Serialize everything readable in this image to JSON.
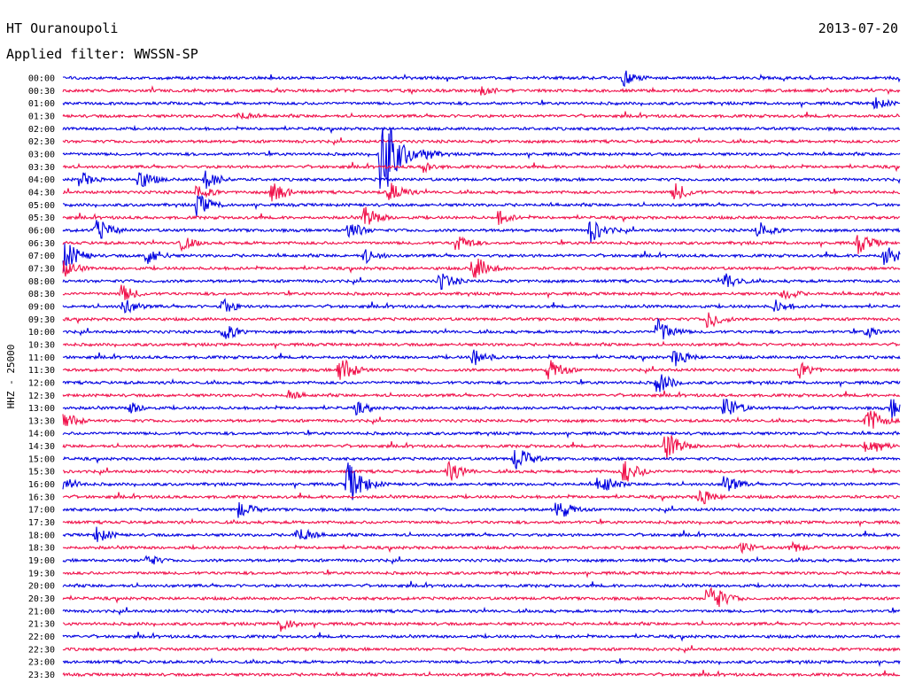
{
  "header": {
    "station": "HT Ouranoupoli",
    "date": "2013-07-20",
    "filter": "Applied filter: WWSSN-SP"
  },
  "chart_data": {
    "type": "line",
    "ylabel": "HHZ - 25000",
    "colors": [
      "#0000e0",
      "#f0104a"
    ],
    "row_labels": [
      "00:00",
      "00:30",
      "01:00",
      "01:30",
      "02:00",
      "02:30",
      "03:00",
      "03:30",
      "04:00",
      "04:30",
      "05:00",
      "05:30",
      "06:00",
      "06:30",
      "07:00",
      "07:30",
      "08:00",
      "08:30",
      "09:00",
      "09:30",
      "10:00",
      "10:30",
      "11:00",
      "11:30",
      "12:00",
      "12:30",
      "13:00",
      "13:30",
      "14:00",
      "14:30",
      "15:00",
      "15:30",
      "16:00",
      "16:30",
      "17:00",
      "17:30",
      "18:00",
      "18:30",
      "19:00",
      "19:30",
      "20:00",
      "20:30",
      "21:00",
      "21:30",
      "22:00",
      "22:30",
      "23:00",
      "23:30"
    ],
    "events": [
      {
        "row": 0,
        "t": 0.67,
        "amp": 10
      },
      {
        "row": 1,
        "t": 0.5,
        "amp": 7
      },
      {
        "row": 2,
        "t": 0.97,
        "amp": 8
      },
      {
        "row": 3,
        "t": 0.21,
        "amp": 7
      },
      {
        "row": 6,
        "t": 0.38,
        "amp": 60
      },
      {
        "row": 6,
        "t": 0.43,
        "amp": 9
      },
      {
        "row": 7,
        "t": 0.43,
        "amp": 8
      },
      {
        "row": 8,
        "t": 0.02,
        "amp": 10
      },
      {
        "row": 8,
        "t": 0.09,
        "amp": 13
      },
      {
        "row": 8,
        "t": 0.17,
        "amp": 12
      },
      {
        "row": 9,
        "t": 0.16,
        "amp": 10
      },
      {
        "row": 9,
        "t": 0.25,
        "amp": 14
      },
      {
        "row": 9,
        "t": 0.39,
        "amp": 14
      },
      {
        "row": 9,
        "t": 0.73,
        "amp": 12
      },
      {
        "row": 10,
        "t": 0.16,
        "amp": 14
      },
      {
        "row": 11,
        "t": 0.36,
        "amp": 14
      },
      {
        "row": 11,
        "t": 0.52,
        "amp": 9
      },
      {
        "row": 12,
        "t": 0.04,
        "amp": 15
      },
      {
        "row": 12,
        "t": 0.34,
        "amp": 12
      },
      {
        "row": 12,
        "t": 0.63,
        "amp": 15
      },
      {
        "row": 12,
        "t": 0.83,
        "amp": 11
      },
      {
        "row": 13,
        "t": 0.14,
        "amp": 10
      },
      {
        "row": 13,
        "t": 0.47,
        "amp": 12
      },
      {
        "row": 13,
        "t": 0.95,
        "amp": 13
      },
      {
        "row": 14,
        "t": 0.0,
        "amp": 20
      },
      {
        "row": 14,
        "t": 0.1,
        "amp": 12
      },
      {
        "row": 14,
        "t": 0.36,
        "amp": 10
      },
      {
        "row": 14,
        "t": 0.98,
        "amp": 15
      },
      {
        "row": 15,
        "t": 0.0,
        "amp": 12
      },
      {
        "row": 15,
        "t": 0.49,
        "amp": 17
      },
      {
        "row": 16,
        "t": 0.45,
        "amp": 12
      },
      {
        "row": 16,
        "t": 0.79,
        "amp": 12
      },
      {
        "row": 17,
        "t": 0.07,
        "amp": 11
      },
      {
        "row": 17,
        "t": 0.86,
        "amp": 9
      },
      {
        "row": 18,
        "t": 0.07,
        "amp": 12
      },
      {
        "row": 18,
        "t": 0.19,
        "amp": 10
      },
      {
        "row": 18,
        "t": 0.85,
        "amp": 9
      },
      {
        "row": 19,
        "t": 0.77,
        "amp": 12
      },
      {
        "row": 20,
        "t": 0.19,
        "amp": 12
      },
      {
        "row": 20,
        "t": 0.71,
        "amp": 16
      },
      {
        "row": 20,
        "t": 0.96,
        "amp": 8
      },
      {
        "row": 22,
        "t": 0.49,
        "amp": 12
      },
      {
        "row": 22,
        "t": 0.73,
        "amp": 12
      },
      {
        "row": 23,
        "t": 0.33,
        "amp": 18
      },
      {
        "row": 23,
        "t": 0.58,
        "amp": 14
      },
      {
        "row": 23,
        "t": 0.88,
        "amp": 10
      },
      {
        "row": 24,
        "t": 0.71,
        "amp": 14
      },
      {
        "row": 25,
        "t": 0.27,
        "amp": 7
      },
      {
        "row": 26,
        "t": 0.08,
        "amp": 8
      },
      {
        "row": 26,
        "t": 0.35,
        "amp": 8
      },
      {
        "row": 26,
        "t": 0.79,
        "amp": 15
      },
      {
        "row": 26,
        "t": 0.99,
        "amp": 12
      },
      {
        "row": 27,
        "t": 0.0,
        "amp": 12
      },
      {
        "row": 27,
        "t": 0.96,
        "amp": 18
      },
      {
        "row": 29,
        "t": 0.72,
        "amp": 18
      },
      {
        "row": 29,
        "t": 0.96,
        "amp": 15
      },
      {
        "row": 30,
        "t": 0.54,
        "amp": 16
      },
      {
        "row": 31,
        "t": 0.46,
        "amp": 14
      },
      {
        "row": 31,
        "t": 0.67,
        "amp": 16
      },
      {
        "row": 32,
        "t": 0.0,
        "amp": 10
      },
      {
        "row": 32,
        "t": 0.34,
        "amp": 26
      },
      {
        "row": 32,
        "t": 0.64,
        "amp": 14
      },
      {
        "row": 32,
        "t": 0.79,
        "amp": 12
      },
      {
        "row": 33,
        "t": 0.76,
        "amp": 12
      },
      {
        "row": 34,
        "t": 0.21,
        "amp": 11
      },
      {
        "row": 34,
        "t": 0.59,
        "amp": 14
      },
      {
        "row": 36,
        "t": 0.04,
        "amp": 10
      },
      {
        "row": 36,
        "t": 0.28,
        "amp": 12
      },
      {
        "row": 37,
        "t": 0.81,
        "amp": 8
      },
      {
        "row": 37,
        "t": 0.87,
        "amp": 8
      },
      {
        "row": 38,
        "t": 0.1,
        "amp": 8
      },
      {
        "row": 41,
        "t": 0.77,
        "amp": 22
      },
      {
        "row": 43,
        "t": 0.26,
        "amp": 10
      }
    ]
  }
}
